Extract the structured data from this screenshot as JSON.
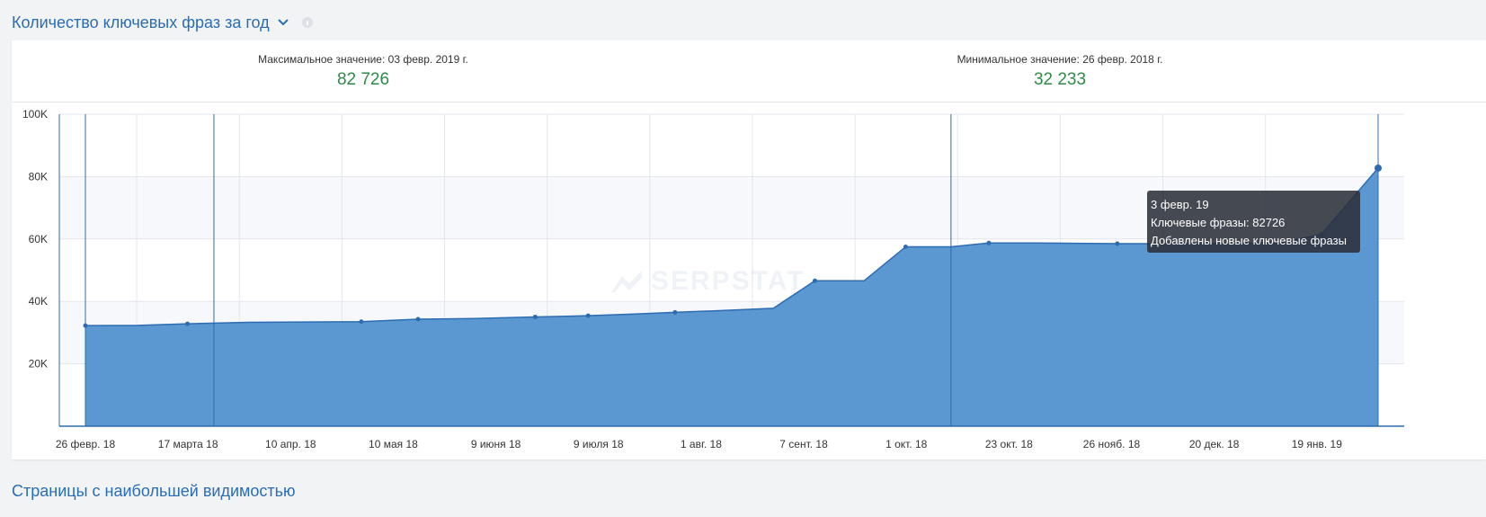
{
  "section": {
    "title": "Количество ключевых фраз за год",
    "next_title": "Страницы с наибольшей видимостью"
  },
  "stats": {
    "max_label": "Максимальное значение: 03 февр. 2019 г.",
    "max_value": "82 726",
    "min_label": "Минимальное значение: 26 февр. 2018 г.",
    "min_value": "32 233"
  },
  "tooltip": {
    "date": "3 февр. 19",
    "line1": "Ключевые фразы: 82726",
    "line2": "Добавлены новые ключевые фразы"
  },
  "watermark": "SERPSTAT",
  "colors": {
    "area": "#5b97d1",
    "line": "#2d6cb1",
    "title": "#2a6db5",
    "value_green": "#2e8b47"
  },
  "chart_data": {
    "type": "area",
    "title": "Количество ключевых фраз за год",
    "xlabel": "",
    "ylabel": "",
    "ylim": [
      0,
      100000
    ],
    "yticks": [
      20000,
      40000,
      60000,
      80000,
      100000
    ],
    "ytick_labels": [
      "20K",
      "40K",
      "60K",
      "80K",
      "100K"
    ],
    "x_tick_labels": [
      "26 февр. 18",
      "17 марта 18",
      "10 апр. 18",
      "10 мая 18",
      "9 июня 18",
      "9 июля 18",
      "1 авг. 18",
      "7 сент. 18",
      "1 окт. 18",
      "23 окт. 18",
      "26 нояб. 18",
      "20 дек. 18",
      "19 янв. 19"
    ],
    "x": [
      "2018-02-26",
      "2018-03-12",
      "2018-03-25",
      "2018-04-10",
      "2018-05-10",
      "2018-05-25",
      "2018-06-09",
      "2018-06-25",
      "2018-07-09",
      "2018-07-22",
      "2018-08-01",
      "2018-08-12",
      "2018-08-27",
      "2018-09-07",
      "2018-09-20",
      "2018-10-01",
      "2018-10-13",
      "2018-10-23",
      "2018-11-05",
      "2018-11-26",
      "2018-12-08",
      "2018-12-20",
      "2019-01-08",
      "2019-01-19",
      "2019-02-03"
    ],
    "series": [
      {
        "values": [
          32233,
          32300,
          32800,
          33300,
          33500,
          34300,
          34500,
          35000,
          35400,
          36000,
          36500,
          37000,
          37800,
          46600,
          46600,
          57500,
          57500,
          58700,
          58700,
          58500,
          58500,
          58500,
          58800,
          61500,
          82726
        ],
        "markers": [
          true,
          false,
          true,
          false,
          true,
          true,
          false,
          true,
          true,
          false,
          true,
          false,
          false,
          true,
          false,
          true,
          false,
          true,
          false,
          true,
          false,
          true,
          false,
          true,
          true
        ]
      }
    ],
    "crosshair_dates": [
      "2018-02-26",
      "2018-04-01",
      "2018-10-13",
      "2019-02-03"
    ],
    "grid": true,
    "legend": "none"
  }
}
